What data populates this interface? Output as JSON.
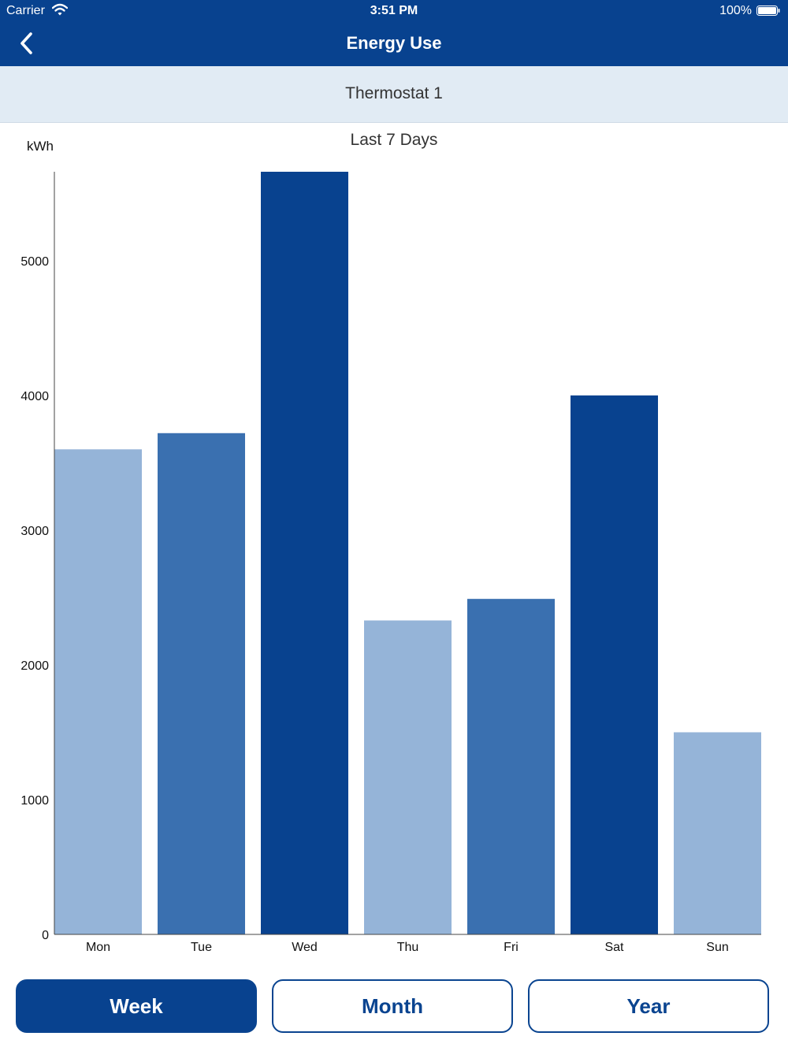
{
  "status_bar": {
    "carrier": "Carrier",
    "time": "3:51 PM",
    "battery": "100%"
  },
  "nav": {
    "title": "Energy Use"
  },
  "device": {
    "name": "Thermostat 1"
  },
  "period_label": "Last 7 Days",
  "colors": {
    "primary": "#08428f",
    "light": "#95b4d8",
    "medium": "#3a70b0",
    "dark": "#08428f",
    "header_bg": "#e1ebf4"
  },
  "chart_data": {
    "type": "bar",
    "ylabel": "kWh",
    "categories": [
      "Mon",
      "Tue",
      "Wed",
      "Thu",
      "Fri",
      "Sat",
      "Sun"
    ],
    "values": [
      3600,
      3720,
      5660,
      2330,
      2490,
      4000,
      1500
    ],
    "bar_colors": [
      "#95b4d8",
      "#3a70b0",
      "#08428f",
      "#95b4d8",
      "#3a70b0",
      "#08428f",
      "#95b4d8"
    ],
    "yticks": [
      0,
      1000,
      2000,
      3000,
      4000,
      5000
    ],
    "ylim": [
      0,
      5660
    ],
    "grid": false,
    "legend": "none"
  },
  "range_buttons": [
    {
      "label": "Week",
      "active": true
    },
    {
      "label": "Month",
      "active": false
    },
    {
      "label": "Year",
      "active": false
    }
  ]
}
